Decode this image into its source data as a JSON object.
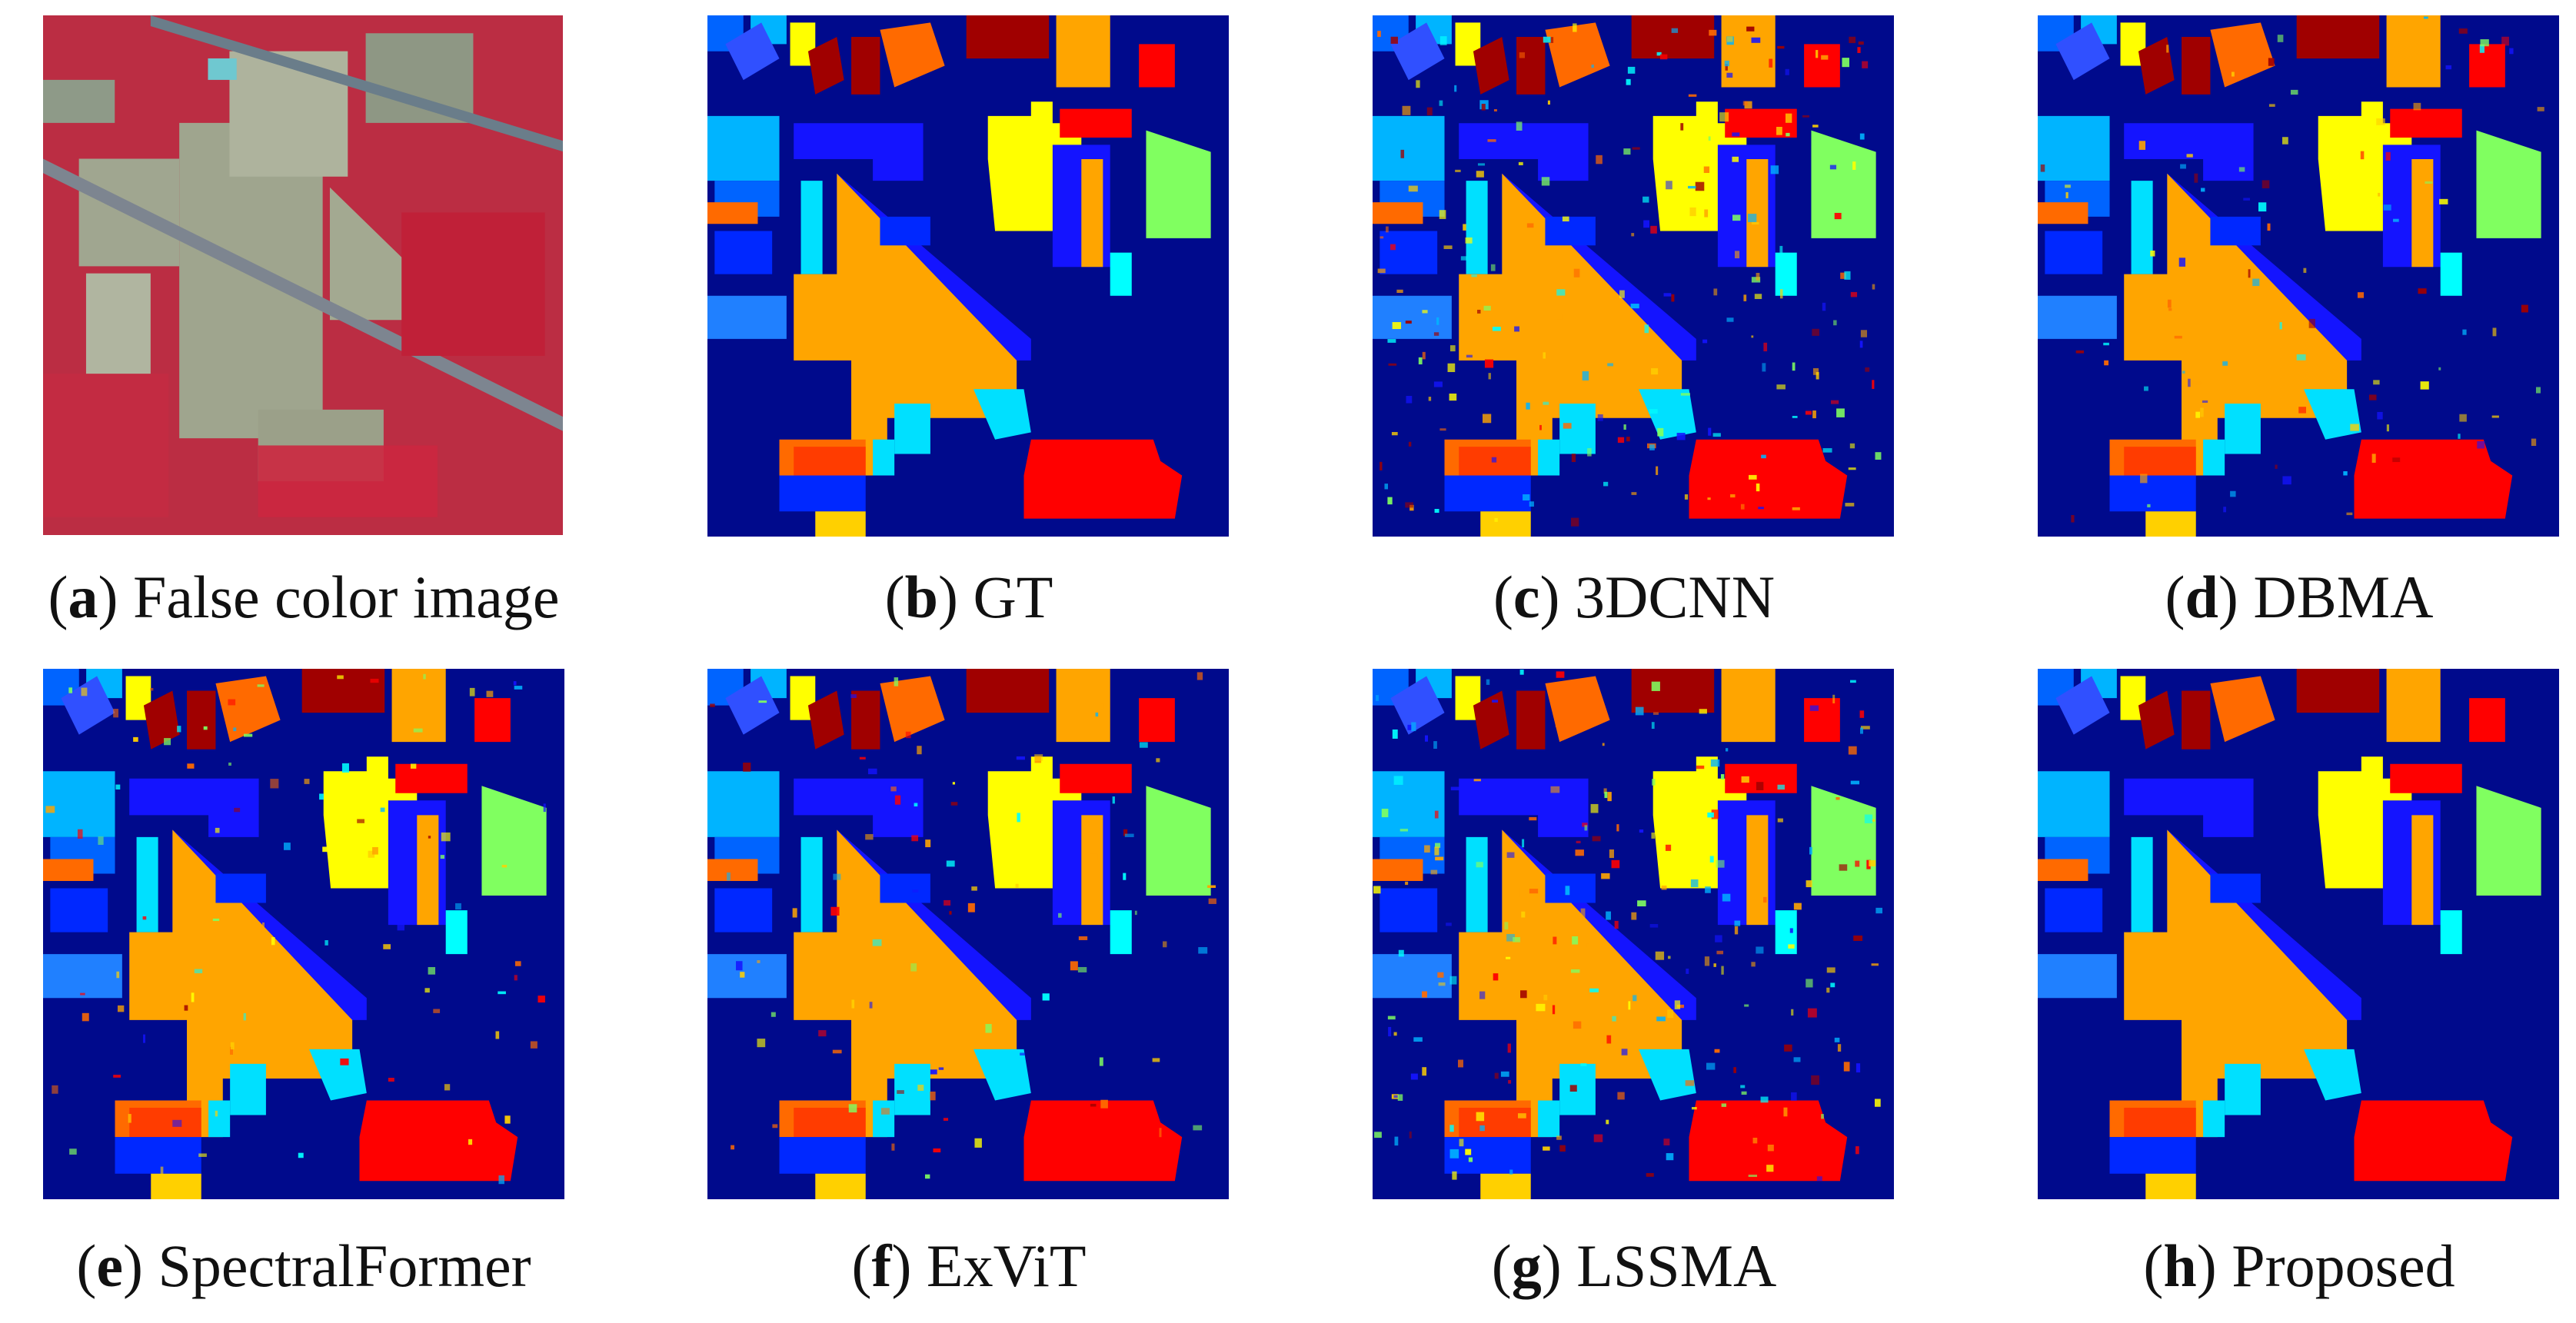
{
  "figure": {
    "panels": [
      {
        "id": "a",
        "letter": "a",
        "label": "False color image",
        "kind": "false-color"
      },
      {
        "id": "b",
        "letter": "b",
        "label": "GT",
        "kind": "classmap",
        "variant": "gt"
      },
      {
        "id": "c",
        "letter": "c",
        "label": "3DCNN",
        "kind": "classmap",
        "variant": "noisy-heavy"
      },
      {
        "id": "d",
        "letter": "d",
        "label": "DBMA",
        "kind": "classmap",
        "variant": "noisy-light"
      },
      {
        "id": "e",
        "letter": "e",
        "label": "SpectralFormer",
        "kind": "classmap",
        "variant": "noisy-light"
      },
      {
        "id": "f",
        "letter": "f",
        "label": "ExViT",
        "kind": "classmap",
        "variant": "noisy-light"
      },
      {
        "id": "g",
        "letter": "g",
        "label": "LSSMA",
        "kind": "classmap",
        "variant": "noisy-heavy"
      },
      {
        "id": "h",
        "letter": "h",
        "label": "Proposed",
        "kind": "classmap",
        "variant": "clean"
      }
    ],
    "class_colors": {
      "background": "#000a8c",
      "alfalfa": "#ffff00",
      "corn_notill": "#ffa500",
      "corn_mintill": "#ff6a00",
      "corn": "#ff0000",
      "grass_pasture": "#00ffff",
      "grass_trees": "#00b4ff",
      "grass_pasture_mowed": "#0064ff",
      "hay_windrowed": "#0028ff",
      "oats": "#a00000",
      "soybean_notill": "#80ff60",
      "soybean_mintill": "#1414ff",
      "soybean_clean": "#00e0ff",
      "wheat": "#ff3c00",
      "woods": "#3050ff",
      "buildings": "#2080ff",
      "stone_steel": "#ffd000"
    }
  }
}
